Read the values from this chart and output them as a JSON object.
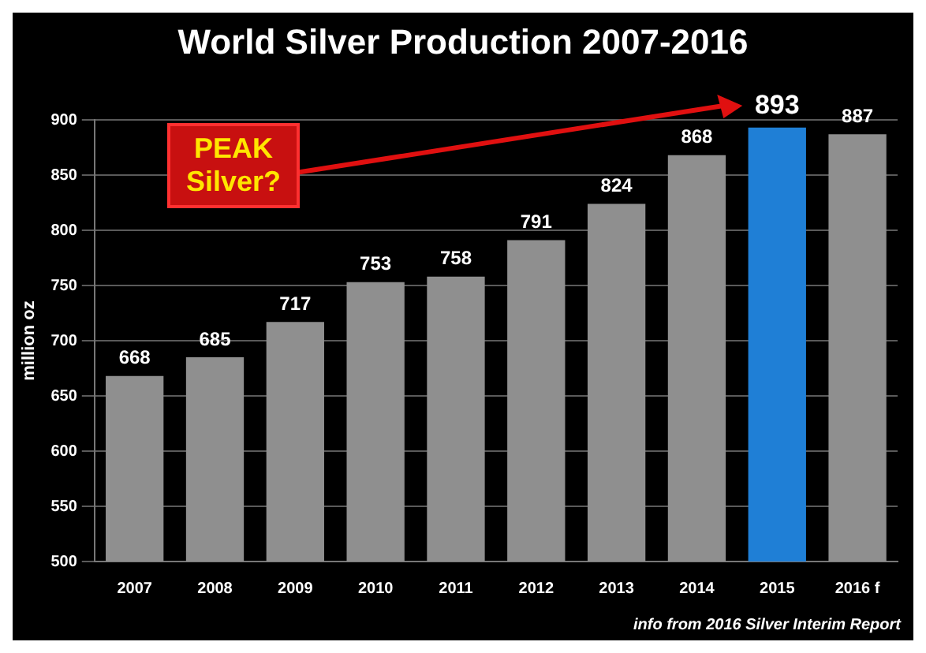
{
  "chart_data": {
    "type": "bar",
    "title": "World Silver Production 2007-2016",
    "ylabel": "million oz",
    "categories": [
      "2007",
      "2008",
      "2009",
      "2010",
      "2011",
      "2012",
      "2013",
      "2014",
      "2015",
      "2016 f"
    ],
    "values": [
      668,
      685,
      717,
      753,
      758,
      791,
      824,
      868,
      893,
      887
    ],
    "colors": [
      "#8f8f8f",
      "#8f8f8f",
      "#8f8f8f",
      "#8f8f8f",
      "#8f8f8f",
      "#8f8f8f",
      "#8f8f8f",
      "#8f8f8f",
      "#1f7fd6",
      "#8f8f8f"
    ],
    "ylim": [
      500,
      900
    ],
    "yticks": [
      500,
      550,
      600,
      650,
      700,
      750,
      800,
      850,
      900
    ],
    "grid": "y",
    "data_labels": true,
    "legend": false,
    "annotations": [
      "PEAK\nSilver?",
      "info from 2016 Silver Interim Report"
    ]
  }
}
